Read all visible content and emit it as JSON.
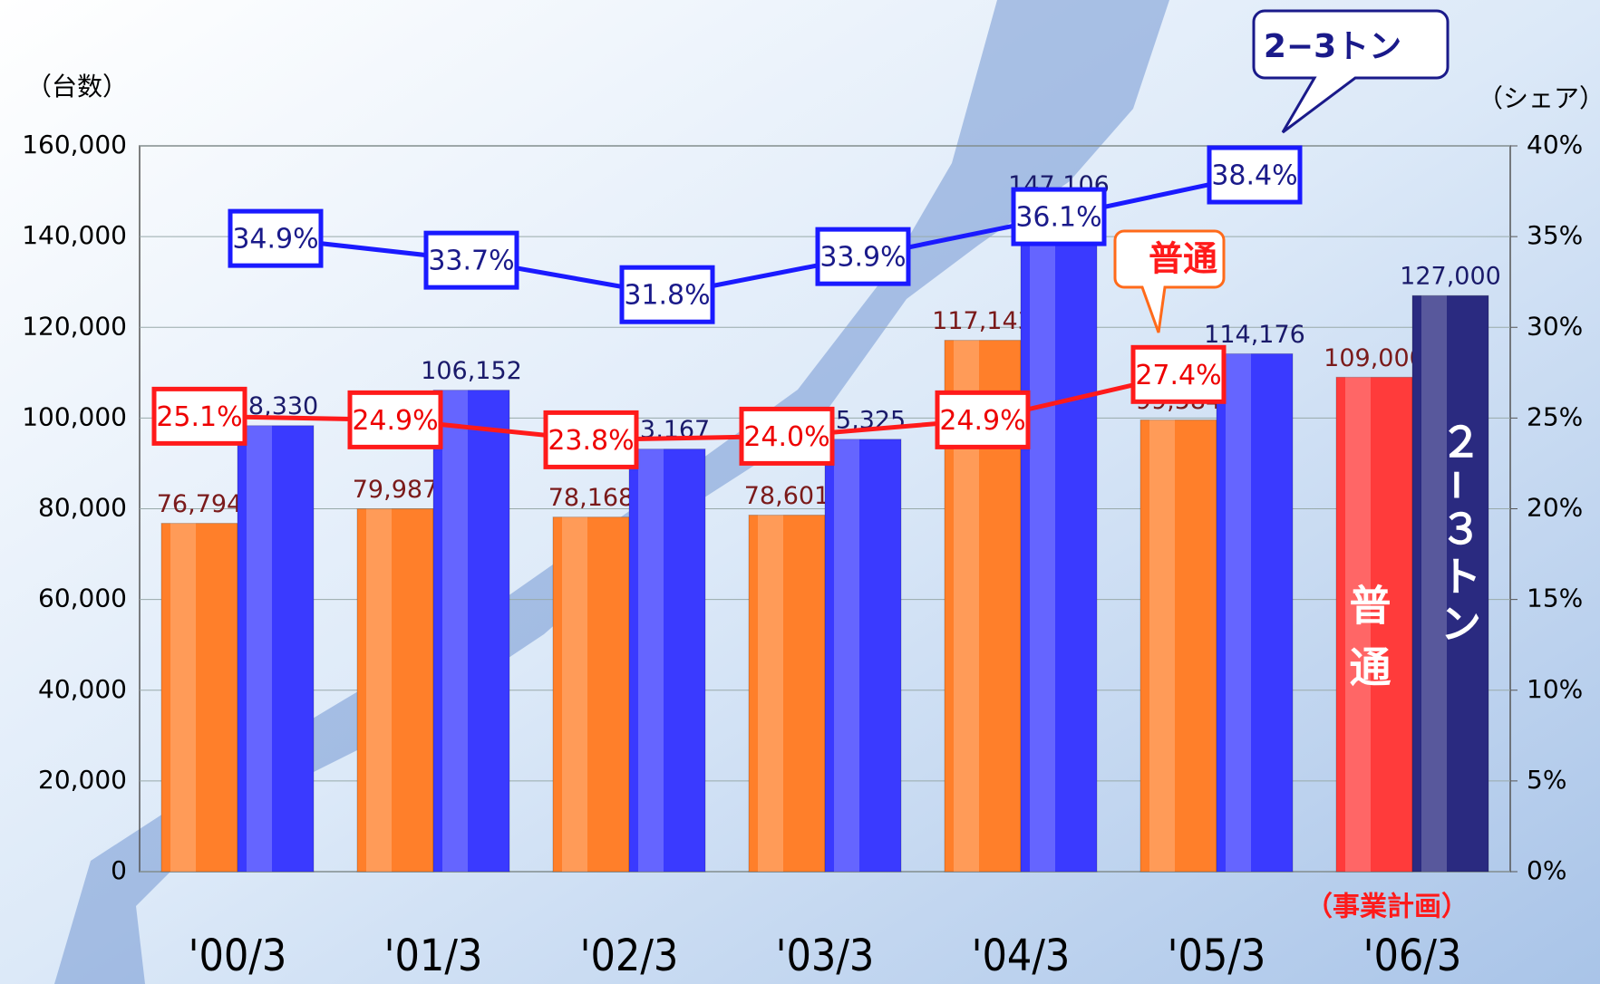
{
  "chart_data": {
    "type": "bar",
    "y_label": "（台数）",
    "y2_label": "（シェア）",
    "categories": [
      "'00/3",
      "'01/3",
      "'02/3",
      "'03/3",
      "'04/3",
      "'05/3",
      "'06/3"
    ],
    "series": [
      {
        "name": "普通",
        "type": "bar",
        "color": "#ff7f2a",
        "colors": [
          "#ff7f2a",
          "#ff7f2a",
          "#ff7f2a",
          "#ff7f2a",
          "#ff7f2a",
          "#ff7f2a",
          "#ff3b3b"
        ],
        "values": [
          76794,
          79987,
          78168,
          78601,
          117143,
          99584,
          109000
        ],
        "value_labels": [
          "76,794",
          "79,987",
          "78,168",
          "78,601",
          "117,143",
          "99,584",
          "109,000"
        ]
      },
      {
        "name": "2−3トン",
        "type": "bar",
        "color": "#3a3aff",
        "colors": [
          "#3a3aff",
          "#3a3aff",
          "#3a3aff",
          "#3a3aff",
          "#3a3aff",
          "#3a3aff",
          "#2a2a80"
        ],
        "values": [
          98330,
          106152,
          93167,
          95325,
          147106,
          114176,
          127000
        ],
        "value_labels": [
          "98,330",
          "106,152",
          "93,167",
          "95,325",
          "147,106",
          "114,176",
          "127,000"
        ]
      },
      {
        "name": "普通",
        "type": "line",
        "axis": "y2",
        "color": "#ff1a1a",
        "values": [
          25.1,
          24.9,
          23.8,
          24.0,
          24.9,
          27.4,
          null
        ],
        "value_labels": [
          "25.1%",
          "24.9%",
          "23.8%",
          "24.0%",
          "24.9%",
          "27.4%",
          null
        ]
      },
      {
        "name": "2−3トン",
        "type": "line",
        "axis": "y2",
        "color": "#1a1aff",
        "values": [
          34.9,
          33.7,
          31.8,
          33.9,
          36.1,
          38.4,
          null
        ],
        "value_labels": [
          "34.9%",
          "33.7%",
          "31.8%",
          "33.9%",
          "36.1%",
          "38.4%",
          null
        ]
      }
    ],
    "ylim": [
      0,
      160000
    ],
    "yticks": [
      0,
      {
        "value": 20000,
        "label": "20,000"
      },
      {
        "value": 40000,
        "label": "40,000"
      },
      {
        "value": 60000,
        "label": "60,000"
      },
      {
        "value": 80000,
        "label": "80,000"
      },
      {
        "value": 100000,
        "label": "100,000"
      },
      {
        "value": 120000,
        "label": "120,000"
      },
      {
        "value": 140000,
        "label": "140,000"
      },
      {
        "value": 160000,
        "label": "160,000"
      }
    ],
    "y2lim": [
      0,
      40
    ],
    "y2ticks": [
      {
        "value": 0,
        "label": "0%"
      },
      {
        "value": 5,
        "label": "5%"
      },
      {
        "value": 10,
        "label": "10%"
      },
      {
        "value": 15,
        "label": "15%"
      },
      {
        "value": 20,
        "label": "20%"
      },
      {
        "value": 25,
        "label": "25%"
      },
      {
        "value": 30,
        "label": "30%"
      },
      {
        "value": 35,
        "label": "35%"
      },
      {
        "value": 40,
        "label": "40%"
      }
    ],
    "grid": true,
    "annotations": [
      "普通",
      "２−３トン",
      "（事業計画）"
    ]
  }
}
